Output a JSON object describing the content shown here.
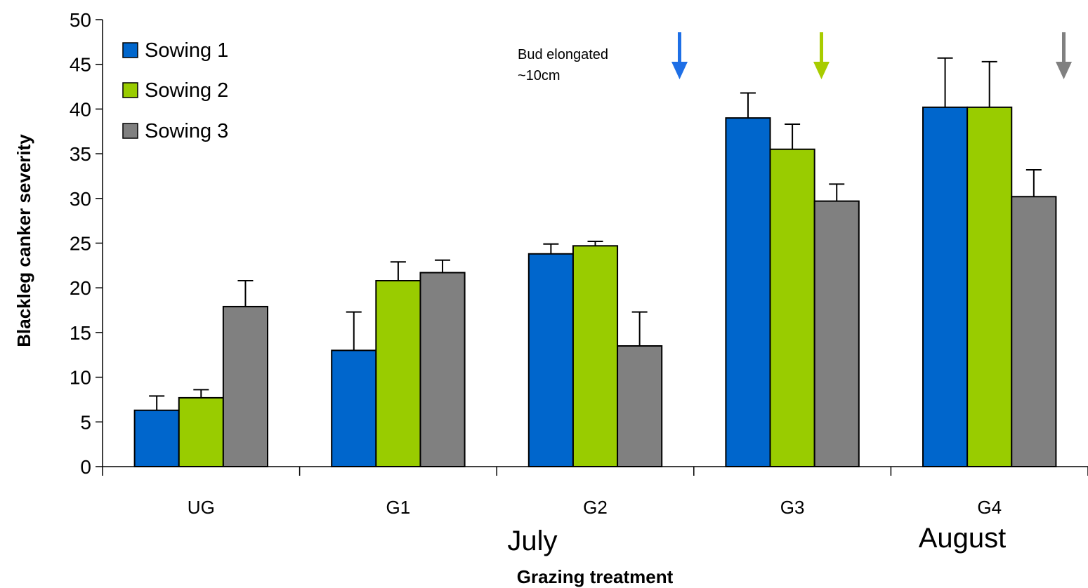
{
  "chart_data": {
    "type": "bar",
    "title": "",
    "xlabel": "Grazing treatment",
    "ylabel": "Blackleg canker severity",
    "ylim": [
      0,
      50
    ],
    "yticks": [
      "0",
      "5",
      "10",
      "15",
      "20",
      "25",
      "30",
      "35",
      "40",
      "45",
      "50"
    ],
    "categories": [
      "UG",
      "G1",
      "G2",
      "G3",
      "G4"
    ],
    "series": [
      {
        "name": "Sowing 1",
        "color": "#0066CC",
        "values": [
          6.3,
          13.0,
          23.8,
          39.0,
          40.2
        ],
        "errors": [
          1.6,
          4.3,
          1.1,
          2.8,
          5.5
        ]
      },
      {
        "name": "Sowing 2",
        "color": "#99CC00",
        "values": [
          7.7,
          20.8,
          24.7,
          35.5,
          40.2
        ],
        "errors": [
          0.9,
          2.1,
          0.5,
          2.8,
          5.1
        ]
      },
      {
        "name": "Sowing 3",
        "color": "#808080",
        "values": [
          17.9,
          21.7,
          13.5,
          29.7,
          30.2
        ],
        "errors": [
          2.9,
          1.4,
          3.8,
          1.9,
          3.0
        ]
      }
    ],
    "legend_position": "top-left",
    "grid": false,
    "month_labels": [
      "July",
      "August"
    ],
    "annotation": {
      "line1": "Bud elongated",
      "line2": "~10cm"
    },
    "arrow_colors": [
      "#1E6FE6",
      "#A8CC00",
      "#808080"
    ]
  }
}
